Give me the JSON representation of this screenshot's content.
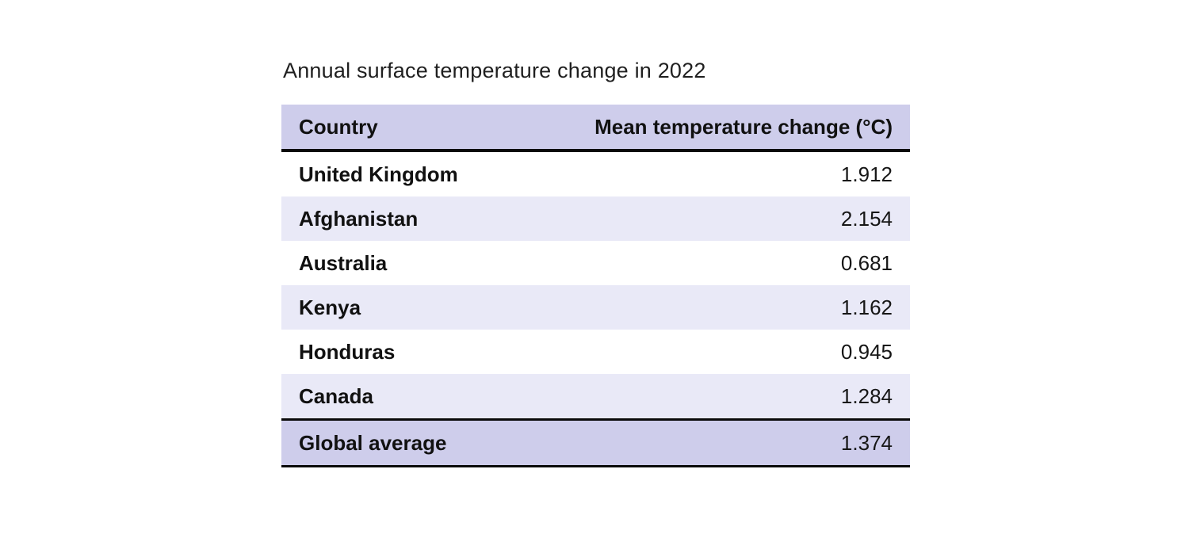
{
  "title": "Annual surface temperature change in 2022",
  "table": {
    "columns": {
      "country": "Country",
      "value": "Mean temperature change (°C)"
    },
    "rows": [
      {
        "country": "United Kingdom",
        "value": "1.912"
      },
      {
        "country": "Afghanistan",
        "value": "2.154"
      },
      {
        "country": "Australia",
        "value": "0.681"
      },
      {
        "country": "Kenya",
        "value": "1.162"
      },
      {
        "country": "Honduras",
        "value": "0.945"
      },
      {
        "country": "Canada",
        "value": "1.284"
      }
    ],
    "footer": {
      "country": "Global average",
      "value": "1.374"
    }
  },
  "colors": {
    "header_bg": "#cecdeb",
    "alt_row_bg": "#e9e9f7",
    "row_bg": "#ffffff",
    "footer_bg": "#cecdeb",
    "rule": "#0a0a0a",
    "text": "#111111"
  },
  "chart_data": {
    "type": "table",
    "title": "Annual surface temperature change in 2022",
    "columns": [
      "Country",
      "Mean temperature change (°C)"
    ],
    "rows": [
      [
        "United Kingdom",
        1.912
      ],
      [
        "Afghanistan",
        2.154
      ],
      [
        "Australia",
        0.681
      ],
      [
        "Kenya",
        1.162
      ],
      [
        "Honduras",
        0.945
      ],
      [
        "Canada",
        1.284
      ],
      [
        "Global average",
        1.374
      ]
    ]
  }
}
